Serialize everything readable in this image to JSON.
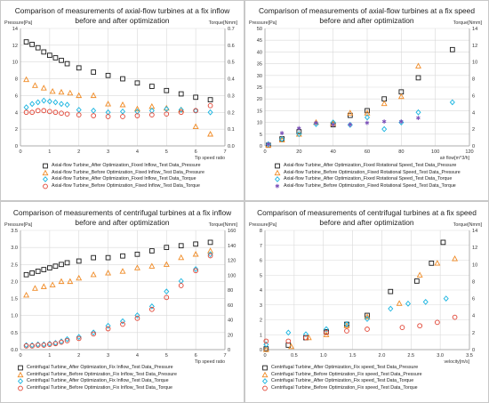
{
  "chart_data": [
    {
      "type": "scatter",
      "title": "Comparison of measurements of axial-flow turbines at a fix inflow before and after optimization",
      "ylabel": "Pressure[Pa]",
      "y2label": "Torque[Nmm]",
      "xlabel": "Tip speed ratio",
      "xlim": [
        0,
        7
      ],
      "xticks": [
        0,
        1,
        2,
        3,
        4,
        5,
        6,
        7
      ],
      "ylim": [
        0,
        14
      ],
      "yticks": [
        0,
        2,
        4,
        6,
        8,
        10,
        12,
        14
      ],
      "y2lim": [
        0,
        0.7
      ],
      "y2ticks": [
        "0.0",
        "0.1",
        "0.2",
        "0.3",
        "0.4",
        "0.5",
        "0.6",
        "0.7"
      ],
      "grid": true,
      "legend_position": "bottom",
      "series": [
        {
          "name": "Axial-flow Turbine_After Optimization_Fixed Inflow_Test Data_Pressure",
          "marker": "square",
          "color": "#1a1a1a",
          "axis": "left",
          "x": [
            0.2,
            0.4,
            0.6,
            0.8,
            1.0,
            1.2,
            1.4,
            1.6,
            2.0,
            2.5,
            3.0,
            3.5,
            4.0,
            4.5,
            5.0,
            5.5,
            6.0,
            6.5
          ],
          "y": [
            12.4,
            12.1,
            11.7,
            11.2,
            10.8,
            10.5,
            10.2,
            9.8,
            9.3,
            8.8,
            8.4,
            8.0,
            7.5,
            7.1,
            6.6,
            6.2,
            5.8,
            5.5
          ]
        },
        {
          "name": "Axial-flow Turbine_Before Optimization_Fixed Inflow_Test Data_Pressure",
          "marker": "triangle",
          "color": "#f08a24",
          "axis": "left",
          "x": [
            0.2,
            0.5,
            0.8,
            1.1,
            1.4,
            1.7,
            2.0,
            2.5,
            3.0,
            3.5,
            4.0,
            4.5,
            5.0,
            5.5,
            6.0,
            6.5
          ],
          "y": [
            7.9,
            7.2,
            6.9,
            6.5,
            6.4,
            6.3,
            6.0,
            6.0,
            5.0,
            4.9,
            4.4,
            4.7,
            4.5,
            4.3,
            2.3,
            1.4
          ]
        },
        {
          "name": "Axial-flow Turbine_After Optimization_Fixed Inflow_Test Data_Torque",
          "marker": "diamond",
          "color": "#18b4e0",
          "axis": "right",
          "x": [
            0.2,
            0.4,
            0.6,
            0.8,
            1.0,
            1.2,
            1.4,
            1.6,
            2.0,
            2.5,
            3.0,
            3.5,
            4.0,
            4.5,
            5.0,
            5.5,
            6.0,
            6.5
          ],
          "y": [
            0.23,
            0.25,
            0.26,
            0.27,
            0.265,
            0.26,
            0.25,
            0.245,
            0.215,
            0.21,
            0.2,
            0.205,
            0.205,
            0.21,
            0.22,
            0.215,
            0.21,
            0.2
          ]
        },
        {
          "name": "Axial-flow Turbine_Before Optimization_Fixed Inflow_Test Data_Torque",
          "marker": "circle",
          "color": "#e04030",
          "axis": "right",
          "x": [
            0.2,
            0.4,
            0.6,
            0.8,
            1.0,
            1.2,
            1.4,
            1.6,
            2.0,
            2.5,
            3.0,
            3.5,
            4.0,
            4.5,
            5.0,
            5.5,
            6.0,
            6.5
          ],
          "y": [
            0.2,
            0.2,
            0.21,
            0.21,
            0.205,
            0.2,
            0.195,
            0.19,
            0.185,
            0.18,
            0.175,
            0.175,
            0.18,
            0.185,
            0.19,
            0.2,
            0.21,
            0.24
          ]
        }
      ]
    },
    {
      "type": "scatter",
      "title": "Comparison of measurements of axial-flow turbines at a fix speed before and after optimization",
      "ylabel": "Pressure[Pa]",
      "y2label": "Torque[Nmm]",
      "xlabel": "air flow[m^3/h]",
      "xlim": [
        0,
        120
      ],
      "xticks": [
        0,
        20,
        40,
        60,
        80,
        100,
        120
      ],
      "ylim": [
        0,
        50
      ],
      "yticks": [
        0,
        5,
        10,
        15,
        20,
        25,
        30,
        35,
        40,
        45,
        50
      ],
      "y2lim": [
        0,
        14
      ],
      "y2ticks": [
        "0",
        "2",
        "4",
        "6",
        "8",
        "10",
        "12",
        "14"
      ],
      "grid": true,
      "legend_position": "bottom",
      "series": [
        {
          "name": "Axial-flow Turbine_After Optimization_Fixed Rotational Speed_Test Data_Pressure",
          "marker": "square",
          "color": "#1a1a1a",
          "axis": "left",
          "x": [
            2,
            10,
            20,
            40,
            50,
            60,
            70,
            80,
            90,
            110
          ],
          "y": [
            0.3,
            3,
            6,
            9,
            13,
            15,
            20,
            23,
            29,
            41
          ]
        },
        {
          "name": "Axial-flow Turbine_Before Optimization_Fixed Rotational Speed_Test Data_Pressure",
          "marker": "triangle",
          "color": "#f08a24",
          "axis": "left",
          "x": [
            2,
            10,
            20,
            30,
            40,
            50,
            60,
            70,
            80,
            90
          ],
          "y": [
            0.2,
            2.5,
            5,
            10,
            9.5,
            14,
            14,
            18,
            21,
            34
          ]
        },
        {
          "name": "Axial-flow Turbine_After Optimization_Fixed Rotational Speed_Test Data_Torque",
          "marker": "diamond",
          "color": "#18b4e0",
          "axis": "right",
          "x": [
            2,
            10,
            20,
            30,
            40,
            50,
            60,
            70,
            80,
            90,
            110
          ],
          "y": [
            0.2,
            0.8,
            1.4,
            2.6,
            2.8,
            2.5,
            3.4,
            2.0,
            2.8,
            4.0,
            5.2
          ]
        },
        {
          "name": "Axial-flow Turbine_Before Optimization_Fixed Rotational Speed_Test Data_Torque",
          "marker": "star",
          "color": "#7a4fb8",
          "axis": "right",
          "x": [
            2,
            10,
            20,
            30,
            40,
            50,
            60,
            70,
            80,
            90
          ],
          "y": [
            0.2,
            1.5,
            2.1,
            2.7,
            2.5,
            2.5,
            2.7,
            2.9,
            2.9,
            3.3
          ]
        }
      ]
    },
    {
      "type": "scatter",
      "title": "Comparison of measurements of centrifugal turbines at a fix inflow before and after optimization",
      "ylabel": "Pressure[Pa]",
      "y2label": "Torque[Nmm]",
      "xlabel": "Tip speed ratio",
      "xlim": [
        0,
        7
      ],
      "xticks": [
        0,
        1,
        2,
        3,
        4,
        5,
        6,
        7
      ],
      "ylim": [
        0,
        3.5
      ],
      "yticks": [
        "0.0",
        "0.5",
        "1.0",
        "1.5",
        "2.0",
        "2.5",
        "3.0",
        "3.5"
      ],
      "y2lim": [
        0,
        160
      ],
      "y2ticks": [
        "0",
        "20",
        "40",
        "60",
        "80",
        "100",
        "120",
        "140",
        "160"
      ],
      "grid": true,
      "legend_position": "bottom",
      "series": [
        {
          "name": "Centrifugal Turbine_After Optimization_Fix Inflow_Test Data_Pressure",
          "marker": "square",
          "color": "#1a1a1a",
          "axis": "left",
          "x": [
            0.2,
            0.4,
            0.6,
            0.8,
            1.0,
            1.2,
            1.4,
            1.6,
            2.0,
            2.5,
            3.0,
            3.5,
            4.0,
            4.5,
            5.0,
            5.5,
            6.0,
            6.5
          ],
          "y": [
            2.2,
            2.25,
            2.3,
            2.35,
            2.4,
            2.45,
            2.5,
            2.55,
            2.6,
            2.7,
            2.7,
            2.75,
            2.8,
            2.9,
            3.0,
            3.05,
            3.1,
            3.15
          ]
        },
        {
          "name": "Centrifugal Turbine_Before Optimization_Fix Inflow_Test Data_Pressure",
          "marker": "triangle",
          "color": "#f08a24",
          "axis": "left",
          "x": [
            0.2,
            0.5,
            0.8,
            1.1,
            1.4,
            1.7,
            2.0,
            2.5,
            3.0,
            3.5,
            4.0,
            4.5,
            5.0,
            5.5,
            6.0,
            6.5
          ],
          "y": [
            1.6,
            1.8,
            1.85,
            1.9,
            2.0,
            2.0,
            2.1,
            2.2,
            2.25,
            2.3,
            2.4,
            2.45,
            2.5,
            2.7,
            2.8,
            2.9
          ]
        },
        {
          "name": "Centrifugal Turbine_After Optimization_Fix Inflow_Test Data_Torque",
          "marker": "diamond",
          "color": "#18b4e0",
          "axis": "right",
          "x": [
            0.2,
            0.4,
            0.6,
            0.8,
            1.0,
            1.2,
            1.4,
            1.6,
            2.0,
            2.5,
            3.0,
            3.5,
            4.0,
            4.5,
            5.0,
            5.5,
            6.0,
            6.5
          ],
          "y": [
            6,
            6,
            7,
            7,
            8,
            9,
            11,
            14,
            17,
            23,
            32,
            38,
            46,
            58,
            78,
            92,
            108,
            128
          ]
        },
        {
          "name": "Centrifugal Turbine_Before Optimization_Fix Inflow_Test Data_Torque",
          "marker": "circle",
          "color": "#e04030",
          "axis": "right",
          "x": [
            0.2,
            0.4,
            0.6,
            0.8,
            1.0,
            1.2,
            1.4,
            1.6,
            2.0,
            2.5,
            3.0,
            3.5,
            4.0,
            4.5,
            5.0,
            5.5,
            6.0,
            6.5
          ],
          "y": [
            5,
            5,
            6,
            6,
            7,
            8,
            10,
            12,
            15,
            21,
            28,
            34,
            42,
            54,
            70,
            86,
            106,
            126
          ]
        }
      ]
    },
    {
      "type": "scatter",
      "title": "Comparison of measurements of centrifugal turbines at a fix speed before and after optimization",
      "ylabel": "Pressure[Pa]",
      "y2label": "Torque[Nmm]",
      "xlabel": "velocity[m/s]",
      "xlim": [
        0,
        3.5
      ],
      "xticks": [
        "0",
        "0.5",
        "1.0",
        "1.5",
        "2.0",
        "2.5",
        "3.0",
        "3.5"
      ],
      "ylim": [
        0,
        8
      ],
      "yticks": [
        0,
        1,
        2,
        3,
        4,
        5,
        6,
        7,
        8
      ],
      "y2lim": [
        0,
        14
      ],
      "y2ticks": [
        "0",
        "2",
        "4",
        "6",
        "8",
        "10",
        "12",
        "14"
      ],
      "grid": true,
      "legend_position": "bottom",
      "series": [
        {
          "name": "Centrifugal Turbine_After Optimization_Fix speed_Test Data_Pressure",
          "marker": "square",
          "color": "#1a1a1a",
          "axis": "left",
          "x": [
            0.02,
            0.4,
            0.7,
            1.05,
            1.4,
            1.75,
            2.15,
            2.6,
            2.85,
            3.05
          ],
          "y": [
            0.05,
            0.3,
            0.8,
            1.2,
            1.7,
            2.3,
            3.9,
            4.6,
            5.8,
            7.2
          ]
        },
        {
          "name": "Centrifugal Turbine_Before Optimization_Fix speed_Test Data_Pressure",
          "marker": "triangle",
          "color": "#f08a24",
          "axis": "left",
          "x": [
            0.02,
            0.45,
            0.75,
            1.05,
            1.4,
            1.75,
            2.3,
            2.65,
            2.95,
            3.25
          ],
          "y": [
            0.0,
            0.2,
            0.8,
            1.0,
            1.6,
            2.2,
            3.1,
            5.0,
            5.8,
            6.1
          ]
        },
        {
          "name": "Centrifugal Turbine_After Optimization_Fix speed_Test Data_Torque",
          "marker": "diamond",
          "color": "#18b4e0",
          "axis": "right",
          "x": [
            0.02,
            0.4,
            0.7,
            1.05,
            1.4,
            1.75,
            2.15,
            2.45,
            2.75,
            3.1
          ],
          "y": [
            0.6,
            2.0,
            1.8,
            2.4,
            3.0,
            3.6,
            4.8,
            5.4,
            5.6,
            6.0
          ]
        },
        {
          "name": "Centrifugal Turbine_Before Optimization_Fix speed_Test Data_Torque",
          "marker": "circle",
          "color": "#e04030",
          "axis": "right",
          "x": [
            0.02,
            0.4,
            0.7,
            1.05,
            1.4,
            1.75,
            2.35,
            2.65,
            2.95,
            3.25
          ],
          "y": [
            1.0,
            1.0,
            1.4,
            2.0,
            2.2,
            2.4,
            2.6,
            2.8,
            3.2,
            3.8
          ]
        }
      ]
    }
  ]
}
